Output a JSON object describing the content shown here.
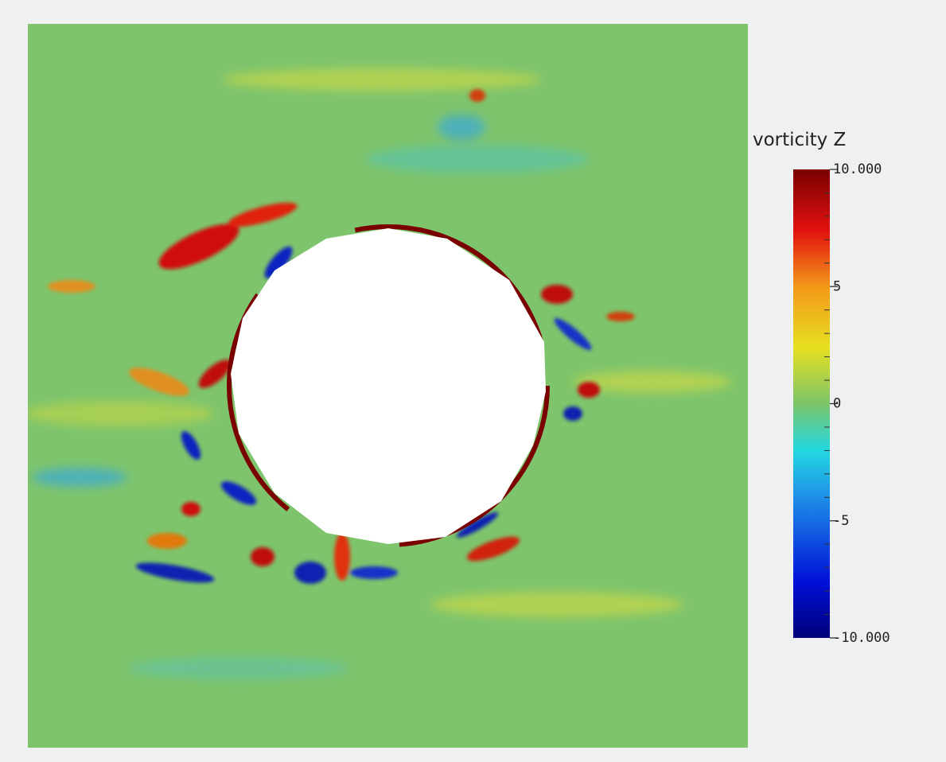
{
  "chart_data": {
    "type": "field",
    "colorbar": {
      "label": "vorticity Z",
      "lim": [
        -10,
        10
      ],
      "ticks": [
        {
          "value": 10,
          "label": "10.000"
        },
        5,
        0,
        -5,
        {
          "value": -10,
          "label": "-10.000"
        }
      ],
      "minor_ticks": [
        9,
        8,
        7,
        6,
        4,
        3,
        2,
        1,
        -1,
        -2,
        -3,
        -4,
        -6,
        -7,
        -8,
        -9
      ]
    }
  }
}
